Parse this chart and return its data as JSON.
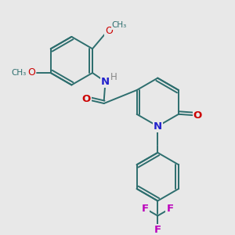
{
  "bg_color": "#e8e8e8",
  "bond_color": "#2d6e6e",
  "atom_colors": {
    "O": "#cc0000",
    "N": "#2222cc",
    "F": "#bb00bb",
    "H": "#888888",
    "C": "#2d6e6e"
  },
  "figsize": [
    3.0,
    3.0
  ],
  "dpi": 100,
  "xlim": [
    0,
    10
  ],
  "ylim": [
    0,
    10
  ]
}
